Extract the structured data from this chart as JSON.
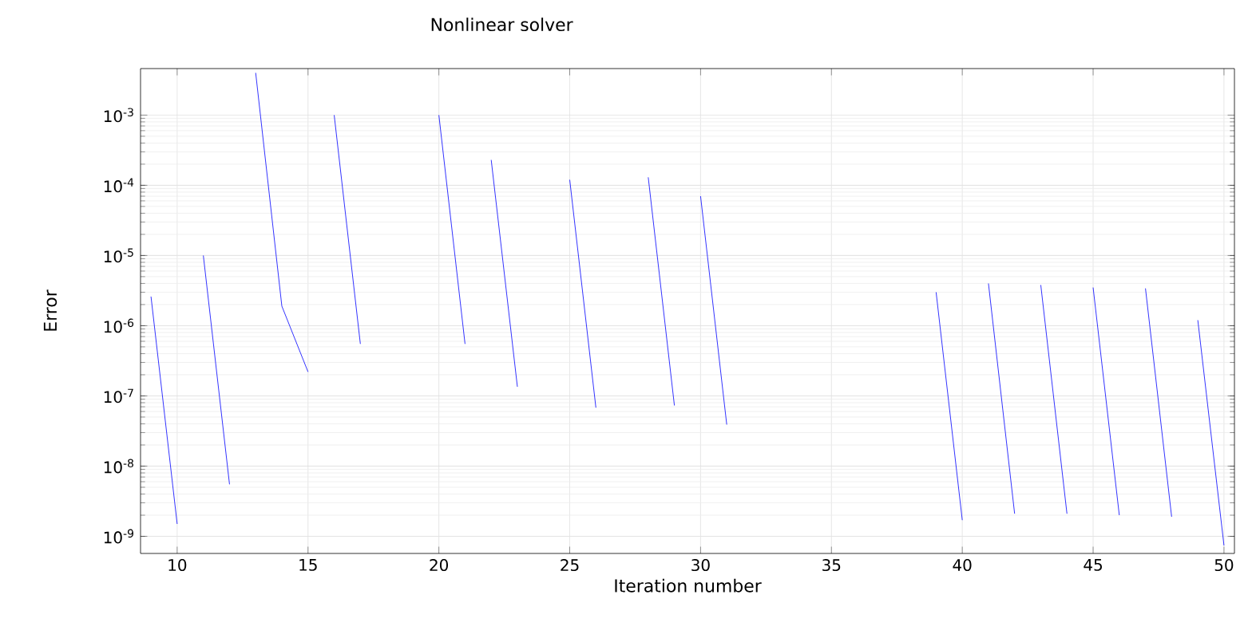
{
  "chart_data": {
    "type": "line",
    "title": "Nonlinear solver",
    "xlabel": "Iteration number",
    "ylabel": "Error",
    "series": [
      {
        "color": "#0000ff",
        "x": [
          9,
          10,
          10.5,
          11,
          12,
          12.5,
          13,
          14,
          15,
          15.5,
          16,
          17,
          18,
          20,
          21,
          21.5,
          22,
          23,
          24,
          25,
          26,
          27,
          28,
          29,
          29.5,
          30,
          31,
          35,
          39,
          40,
          40.5,
          41,
          42,
          42.5,
          43,
          44,
          44.5,
          45,
          46,
          46.5,
          47,
          48,
          48.5,
          49,
          50
        ],
        "values": [
          2.6e-06,
          1.5e-09,
          null,
          1e-05,
          5.5e-09,
          null,
          0.004,
          1.9e-06,
          2.2e-07,
          null,
          0.001,
          5.5e-07,
          null,
          0.001,
          5.5e-07,
          null,
          0.00023,
          1.35e-07,
          null,
          0.00012,
          6.8e-08,
          null,
          0.00013,
          7.3e-08,
          null,
          7e-05,
          3.9e-08,
          null,
          3e-06,
          1.7e-09,
          null,
          4e-06,
          2.1e-09,
          null,
          3.8e-06,
          2.1e-09,
          null,
          3.5e-06,
          2e-09,
          null,
          3.4e-06,
          1.9e-09,
          null,
          1.2e-06,
          7.4e-10
        ]
      }
    ],
    "log": "y",
    "grid": true,
    "marker": "none",
    "line_style": "solid",
    "xlim": [
      8.6,
      50.4
    ],
    "xticks": [
      10,
      15,
      20,
      25,
      30,
      35,
      40,
      45,
      50
    ],
    "ylim": [
      5.7e-10,
      0.0046
    ],
    "yticks": [
      {
        "value": 1e-09,
        "label": "10$^{-9}$"
      },
      {
        "value": 1e-08,
        "label": "10$^{-8}$"
      },
      {
        "value": 1e-07,
        "label": "10$^{-7}$"
      },
      {
        "value": 1e-06,
        "label": "10$^{-6}$"
      },
      {
        "value": 1e-05,
        "label": "10$^{-5}$"
      },
      {
        "value": 0.0001,
        "label": "10$^{-4}$"
      },
      {
        "value": 0.001,
        "label": "10$^{-3}$"
      }
    ]
  }
}
